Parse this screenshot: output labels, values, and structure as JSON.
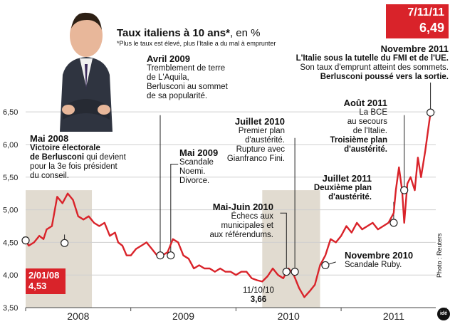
{
  "header": {
    "title": "Taux italiens à 10 ans*",
    "unit": ", en %",
    "footnote": "*Plus le taux est élevé, plus l'Italie a du mal à emprunter"
  },
  "last_value_box": {
    "date": "7/11/11",
    "value": "6,49"
  },
  "start_value_box": {
    "date": "2/01/08",
    "value": "4,53"
  },
  "min_label": {
    "date": "11/10/10",
    "value": "3,66"
  },
  "annotations": {
    "mai2008": {
      "heading": "Mai 2008",
      "line1": "Victoire électorale",
      "line2b": "de Berlusconi",
      "line2": " qui devient",
      "line3": "pour la 3e fois président",
      "line4": "du conseil."
    },
    "avril2009": {
      "heading": "Avril 2009",
      "lines": [
        "Tremblement de terre",
        "de L'Aquila,",
        "Berlusconi au sommet",
        "de sa popularité."
      ]
    },
    "mai2009": {
      "heading": "Mai 2009",
      "lines": [
        "Scandale",
        "Noemi.",
        "Divorce."
      ]
    },
    "juillet2010": {
      "heading": "Juillet 2010",
      "lines": [
        "Premier plan",
        "d'austérité.",
        "Rupture avec",
        "Gianfranco Fini."
      ]
    },
    "maijuin2010": {
      "heading": "Mai-Juin 2010",
      "lines": [
        "Échecs aux",
        "municipales et",
        "aux référendums."
      ]
    },
    "novembre2010": {
      "heading": "Novembre 2010",
      "lines": [
        "Scandale Ruby."
      ]
    },
    "juillet2011": {
      "heading": "Juillet 2011",
      "lines": [
        "Deuxième plan",
        "d'austérité."
      ]
    },
    "aout2011": {
      "heading": "Août 2011",
      "lines": [
        "La BCE",
        "au secours",
        "de l'Italie."
      ],
      "bold": [
        "Troisième plan",
        "d'austérité."
      ]
    },
    "novembre2011": {
      "heading": "Novembre 2011",
      "bold1": [
        "L'Italie sous la tutelle du FMI et de l'UE."
      ],
      "normal": [
        "Son taux d'emprunt atteint des sommets."
      ],
      "bold2": [
        "Berlusconi poussé vers la sortie."
      ]
    }
  },
  "credit": "Photo : Reuters",
  "logo": "idé",
  "colors": {
    "line": "#d9232a",
    "band": "#e1dbd0",
    "grid": "#cfcfcf",
    "accent": "#d9232a"
  },
  "chart_data": {
    "type": "line",
    "title": "Taux italiens à 10 ans*, en %",
    "xlabel": "",
    "ylabel": "",
    "x_ticks": [
      "2008",
      "2009",
      "2010",
      "2011"
    ],
    "y_ticks": [
      "3,50",
      "4,00",
      "4,50",
      "5,00",
      "5,50",
      "6,00",
      "6,50"
    ],
    "ylim": [
      3.5,
      6.6
    ],
    "xlim": [
      2008.0,
      2011.9
    ],
    "grid": true,
    "shaded_periods": [
      [
        2008.0,
        2008.63
      ],
      [
        2010.25,
        2010.8
      ]
    ],
    "series": [
      {
        "values_t": [
          2008.0,
          2008.03,
          2008.08,
          2008.13,
          2008.17,
          2008.2,
          2008.25,
          2008.3,
          2008.35,
          2008.4,
          2008.45,
          2008.5,
          2008.55,
          2008.6,
          2008.65,
          2008.7,
          2008.75,
          2008.8,
          2008.85,
          2008.88,
          2008.92,
          2008.96,
          2009.0,
          2009.05,
          2009.1,
          2009.15,
          2009.2,
          2009.25,
          2009.3,
          2009.35,
          2009.4,
          2009.45,
          2009.5,
          2009.55,
          2009.6,
          2009.65,
          2009.7,
          2009.75,
          2009.8,
          2009.85,
          2009.9,
          2009.95,
          2010.0,
          2010.05,
          2010.1,
          2010.15,
          2010.2,
          2010.25,
          2010.3,
          2010.35,
          2010.4,
          2010.45,
          2010.5,
          2010.55,
          2010.6,
          2010.65,
          2010.7,
          2010.75,
          2010.8,
          2010.85,
          2010.9,
          2010.95,
          2011.0,
          2011.05,
          2011.1,
          2011.15,
          2011.2,
          2011.25,
          2011.3,
          2011.35,
          2011.4,
          2011.45,
          2011.5,
          2011.52,
          2011.55,
          2011.58,
          2011.6,
          2011.63,
          2011.66,
          2011.7,
          2011.73,
          2011.76,
          2011.8,
          2011.85
        ],
        "values": [
          4.53,
          4.45,
          4.5,
          4.6,
          4.55,
          4.7,
          4.75,
          5.2,
          5.1,
          5.25,
          5.15,
          4.9,
          4.85,
          4.9,
          4.8,
          4.75,
          4.8,
          4.6,
          4.65,
          4.5,
          4.45,
          4.3,
          4.3,
          4.4,
          4.45,
          4.5,
          4.4,
          4.3,
          4.3,
          4.35,
          4.55,
          4.5,
          4.3,
          4.25,
          4.1,
          4.15,
          4.1,
          4.1,
          4.05,
          4.1,
          4.05,
          4.05,
          4.0,
          4.05,
          4.05,
          3.95,
          3.92,
          3.9,
          3.98,
          4.1,
          4.0,
          3.95,
          4.1,
          4.0,
          3.8,
          3.66,
          3.75,
          3.85,
          4.15,
          4.3,
          4.55,
          4.5,
          4.6,
          4.75,
          4.65,
          4.8,
          4.7,
          4.75,
          4.8,
          4.7,
          4.75,
          4.8,
          4.95,
          5.3,
          5.65,
          5.3,
          4.8,
          5.4,
          5.5,
          5.3,
          5.8,
          5.5,
          5.9,
          6.49
        ]
      }
    ]
  }
}
